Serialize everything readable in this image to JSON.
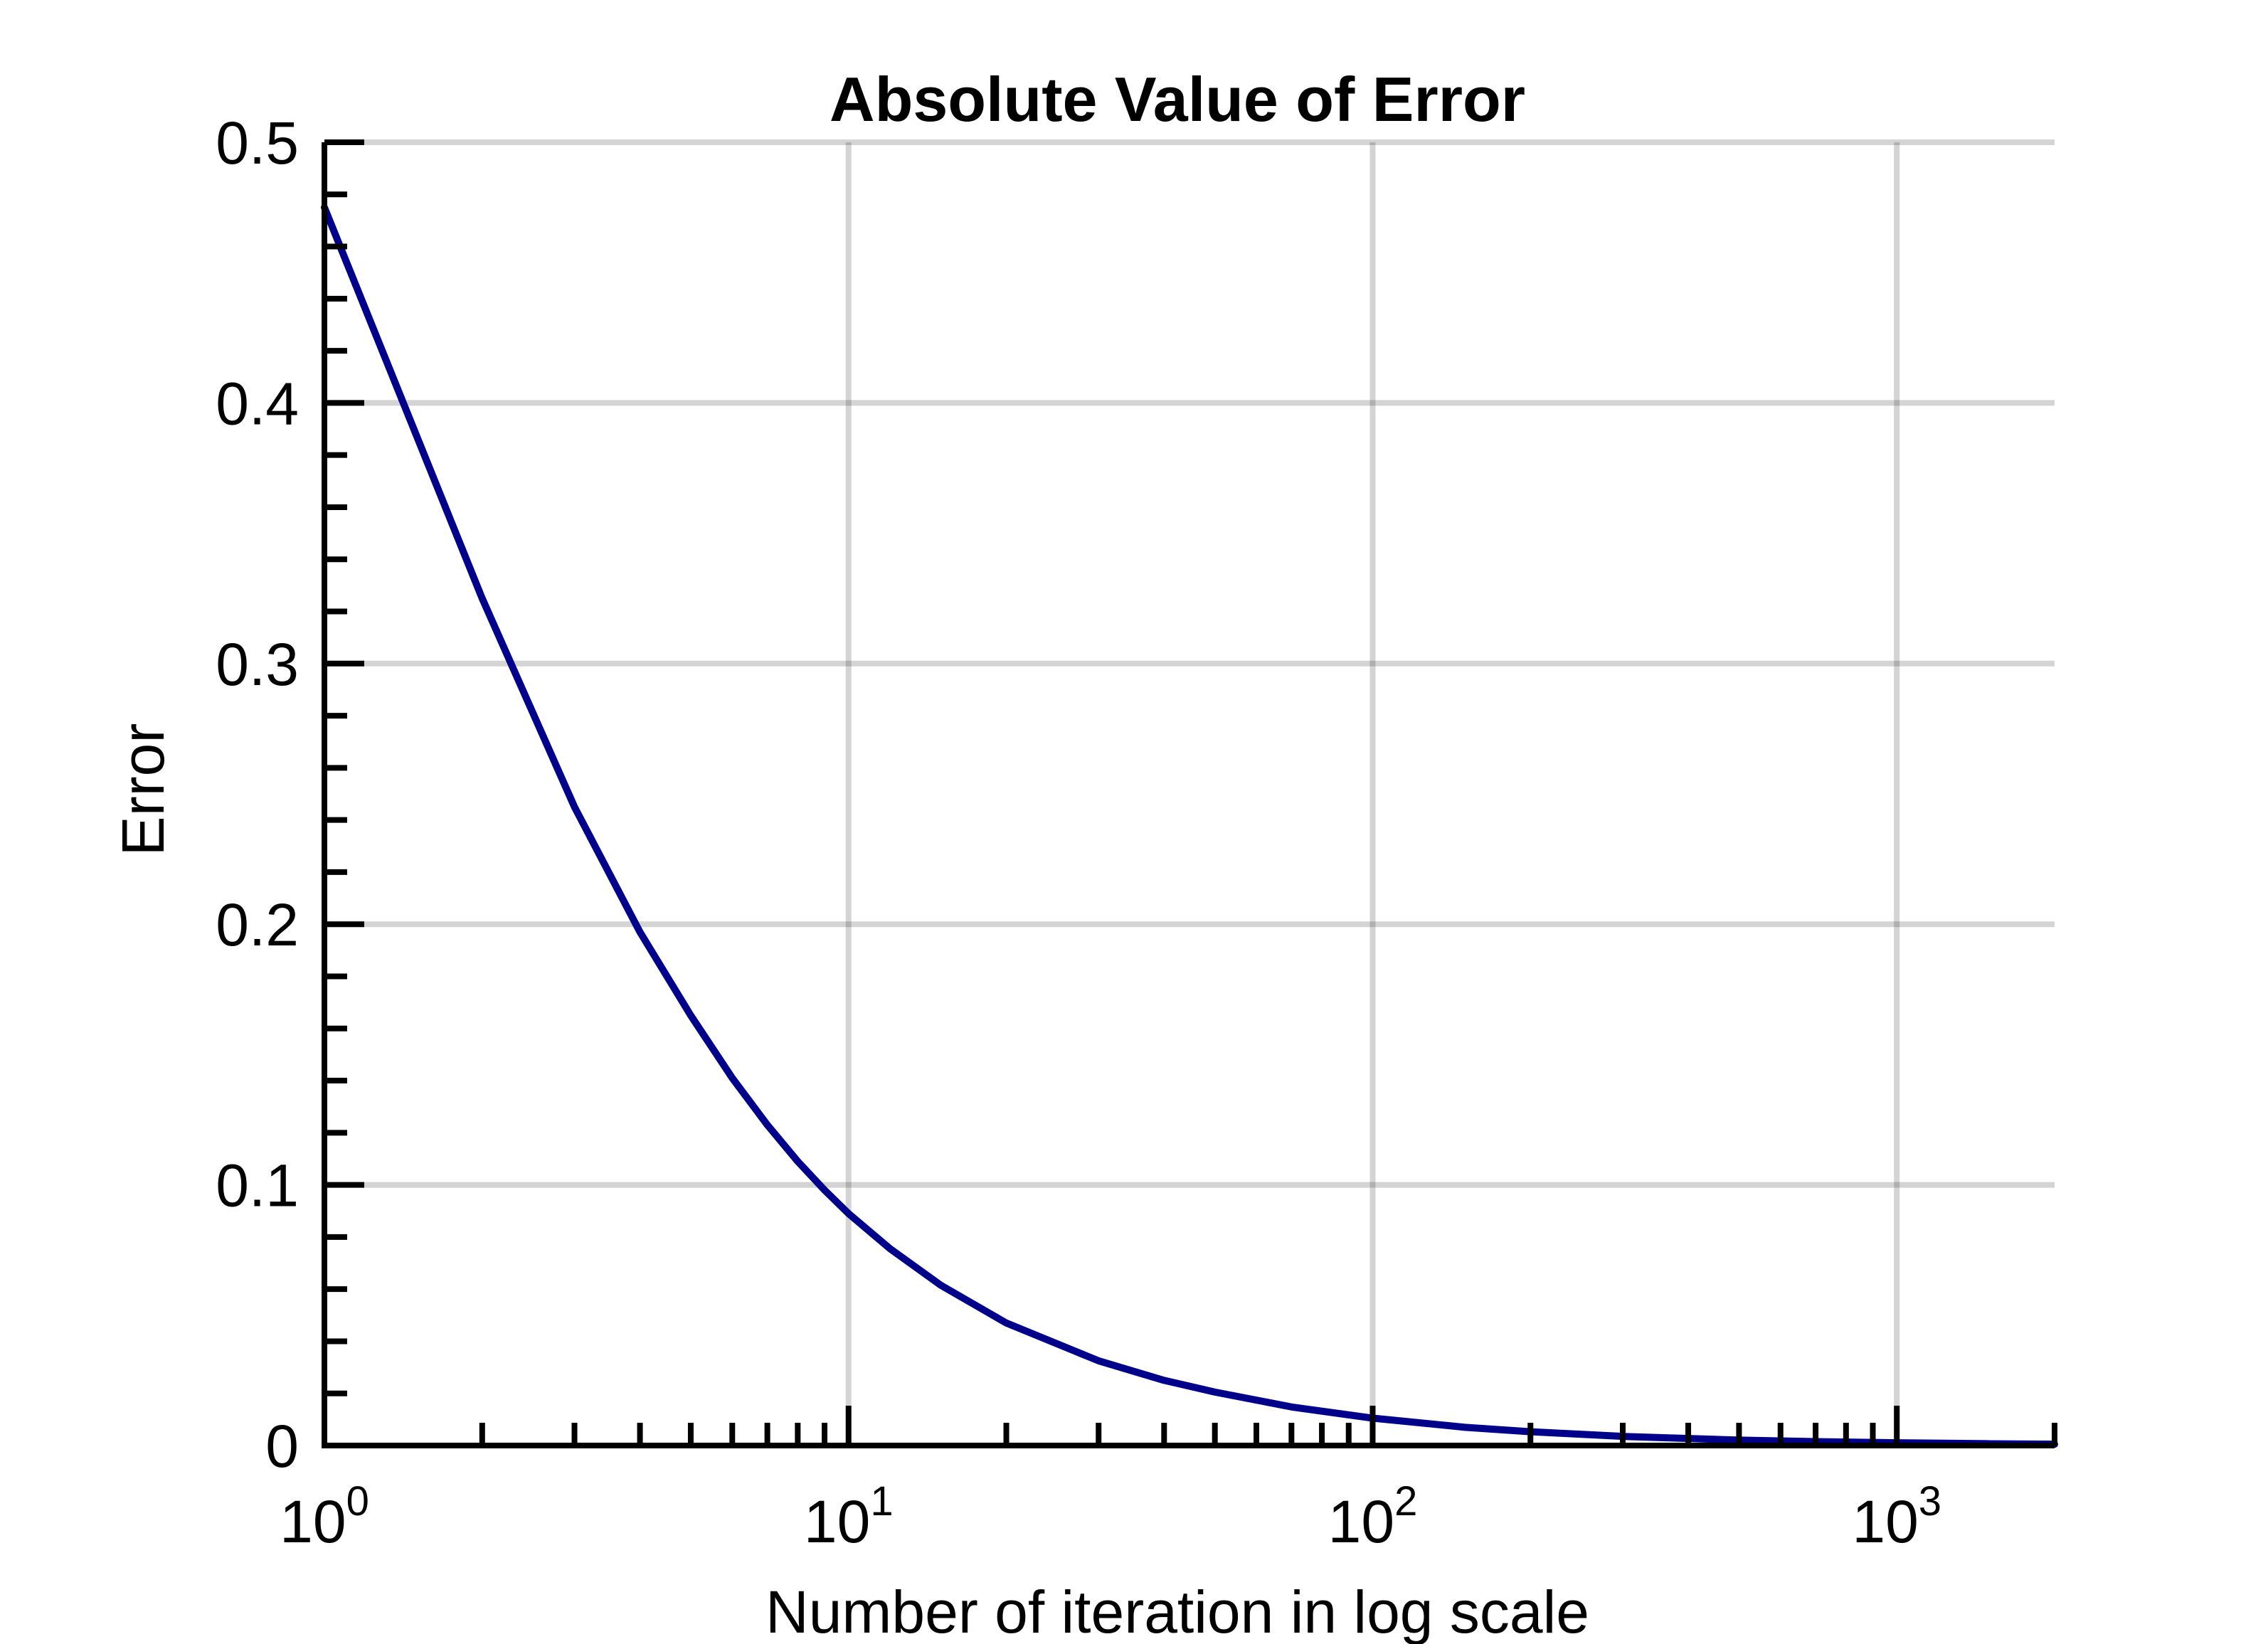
{
  "chart_data": {
    "type": "line",
    "title": "Absolute Value of Error",
    "xlabel": "Number of iteration in log scale",
    "ylabel": "Error",
    "x_scale": "log",
    "xlim": [
      1,
      2000
    ],
    "ylim": [
      0,
      0.5
    ],
    "grid": true,
    "x_ticks": [
      {
        "base": "10",
        "exp": "0",
        "value": 1
      },
      {
        "base": "10",
        "exp": "1",
        "value": 10
      },
      {
        "base": "10",
        "exp": "2",
        "value": 100
      },
      {
        "base": "10",
        "exp": "3",
        "value": 1000
      }
    ],
    "y_ticks": [
      {
        "label": "0",
        "value": 0
      },
      {
        "label": "0.1",
        "value": 0.1
      },
      {
        "label": "0.2",
        "value": 0.2
      },
      {
        "label": "0.3",
        "value": 0.3
      },
      {
        "label": "0.4",
        "value": 0.4
      },
      {
        "label": "0.5",
        "value": 0.5
      }
    ],
    "series": [
      {
        "color": "#00008b",
        "x": [
          1,
          2,
          3,
          4,
          5,
          6,
          7,
          8,
          9,
          10,
          12,
          15,
          20,
          30,
          40,
          50,
          70,
          100,
          150,
          200,
          300,
          500,
          700,
          1000,
          1500,
          2000
        ],
        "y": [
          0.475,
          0.325,
          0.245,
          0.197,
          0.165,
          0.141,
          0.123,
          0.109,
          0.098,
          0.089,
          0.0755,
          0.0615,
          0.047,
          0.0325,
          0.025,
          0.0205,
          0.0148,
          0.0105,
          0.007,
          0.0053,
          0.0035,
          0.0021,
          0.0015,
          0.00105,
          0.0007,
          0.0005
        ]
      }
    ]
  }
}
